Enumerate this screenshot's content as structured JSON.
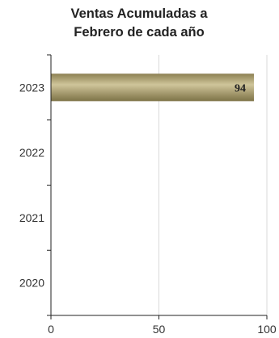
{
  "chart_data": {
    "type": "bar",
    "orientation": "horizontal",
    "title": [
      "Ventas Acumuladas a",
      "Febrero de cada año"
    ],
    "categories": [
      "2023",
      "2022",
      "2021",
      "2020"
    ],
    "series": [
      {
        "values": [
          94,
          null,
          null,
          null
        ]
      }
    ],
    "data_labels": [
      "94",
      "",
      "",
      ""
    ],
    "xlim": [
      0,
      100
    ],
    "x_ticks": [
      0,
      50,
      100
    ],
    "x_tick_labels": [
      "0",
      "50",
      "100"
    ],
    "grid": "vertical",
    "legend": "none",
    "bar_color": "#b3a772"
  }
}
